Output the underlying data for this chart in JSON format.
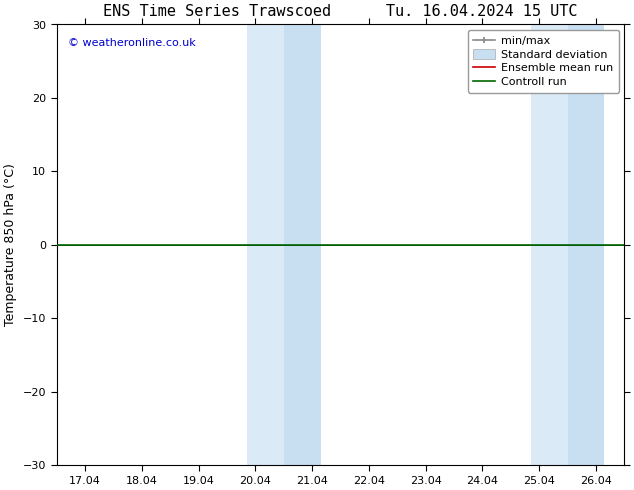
{
  "title": "ENS Time Series Trawscoed      Tu. 16.04.2024 15 UTC",
  "ylabel": "Temperature 850 hPa (°C)",
  "ylim": [
    -30,
    30
  ],
  "yticks": [
    -30,
    -20,
    -10,
    0,
    10,
    20,
    30
  ],
  "xtick_labels": [
    "17.04",
    "18.04",
    "19.04",
    "20.04",
    "21.04",
    "22.04",
    "23.04",
    "24.04",
    "25.04",
    "26.04"
  ],
  "xtick_positions": [
    0,
    1,
    2,
    3,
    4,
    5,
    6,
    7,
    8,
    9
  ],
  "xmin": -0.5,
  "xmax": 9.5,
  "shaded_regions": [
    {
      "xstart": 2.85,
      "xend": 3.5,
      "color": "#daeaf7"
    },
    {
      "xstart": 3.5,
      "xend": 4.15,
      "color": "#c8dff2"
    },
    {
      "xstart": 7.85,
      "xend": 8.5,
      "color": "#daeaf7"
    },
    {
      "xstart": 8.5,
      "xend": 9.15,
      "color": "#c8dff2"
    }
  ],
  "control_run_y": 0.0,
  "control_run_color": "#006600",
  "ensemble_mean_color": "#cc0000",
  "watermark_text": "© weatheronline.co.uk",
  "watermark_color": "#0000cc",
  "background_color": "#ffffff",
  "plot_bg_color": "#f8f8f8",
  "title_fontsize": 11,
  "axis_fontsize": 9,
  "tick_fontsize": 8,
  "legend_fontsize": 8
}
